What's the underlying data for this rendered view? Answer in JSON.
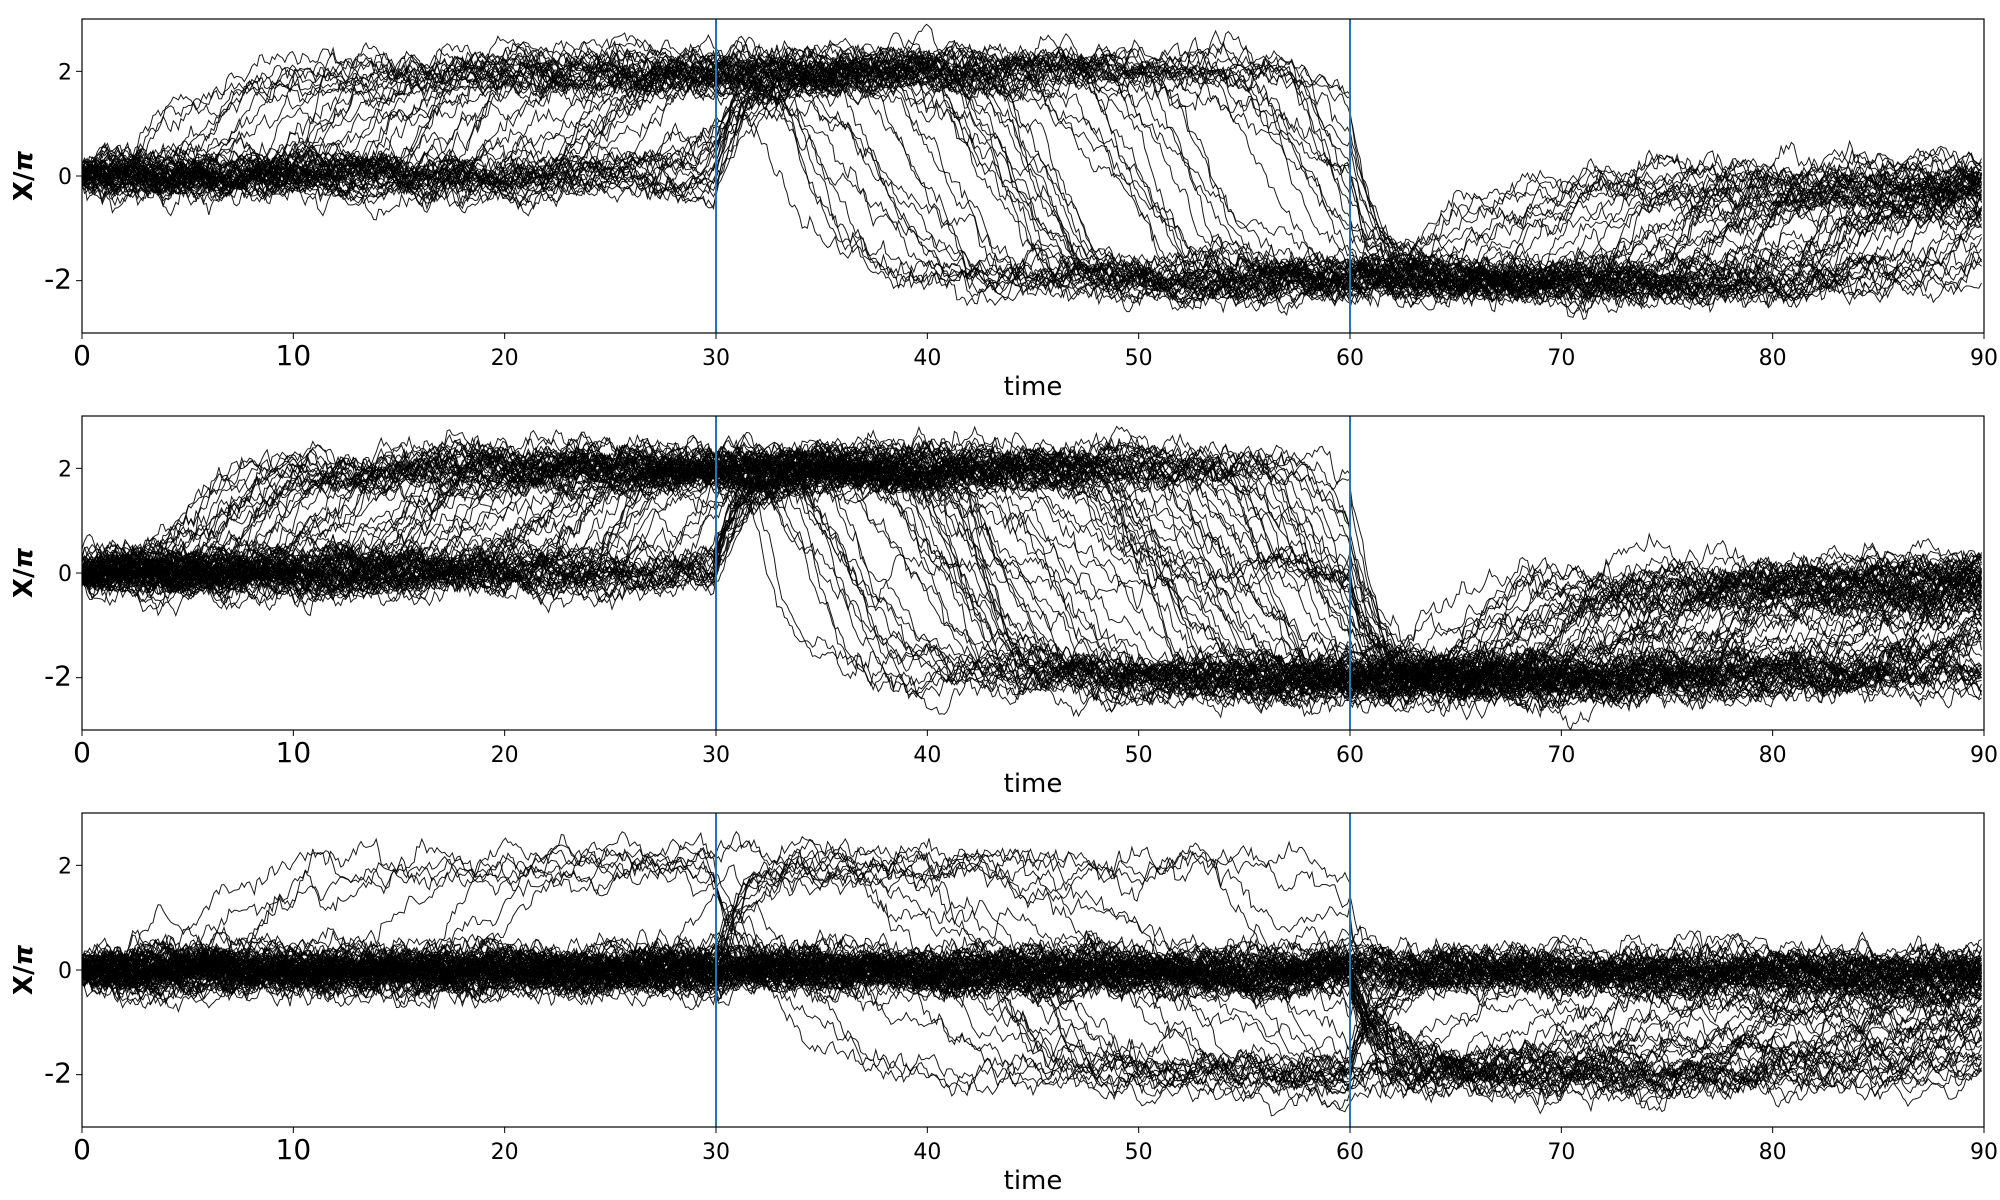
{
  "chart_data": [
    {
      "type": "line",
      "xlabel": "time",
      "ylabel": "X/",
      "ylabel_symbol": "π",
      "xlim": [
        0,
        90
      ],
      "ylim": [
        -3,
        3
      ],
      "xticks": [
        0,
        10,
        20,
        30,
        40,
        50,
        60,
        70,
        80,
        90
      ],
      "xtick_labels": [
        "0",
        "10",
        "20",
        "30",
        "40",
        "50",
        "60",
        "70",
        "80",
        "90"
      ],
      "yticks": [
        2,
        0,
        -2
      ],
      "ytick_labels": [
        "2",
        "0",
        "-2"
      ],
      "grid": false,
      "line_color": "#000000",
      "vlines": [
        30,
        60
      ],
      "vline_color": "#1f77b4",
      "phases": [
        {
          "t_start": 0,
          "t_end": 30,
          "start_levels": [
            0,
            0,
            0,
            0,
            0,
            0,
            0,
            0,
            0,
            0
          ],
          "end_levels": [
            2,
            2,
            2,
            2,
            2,
            2,
            0,
            0,
            2,
            2
          ]
        },
        {
          "t_start": 30,
          "t_end": 60,
          "start_levels": [
            2,
            2,
            2,
            2,
            2,
            2,
            2,
            2,
            2,
            2
          ],
          "end_levels": [
            -2,
            -2,
            -2,
            -2,
            -2,
            -2,
            -2,
            -2,
            -2,
            -2
          ]
        },
        {
          "t_start": 60,
          "t_end": 90,
          "start_levels": [
            -2,
            -2,
            -2,
            -2,
            -2,
            -2,
            -2,
            -2,
            -2,
            -2
          ],
          "end_levels": [
            0,
            -0.3,
            -0.5,
            0,
            -0.2,
            -0.6,
            0,
            -0.4,
            -0.1,
            -0.8
          ]
        }
      ],
      "series_count": 60
    },
    {
      "type": "line",
      "xlabel": "time",
      "ylabel": "X/",
      "ylabel_symbol": "π",
      "xlim": [
        0,
        90
      ],
      "ylim": [
        -3,
        3
      ],
      "xticks": [
        0,
        10,
        20,
        30,
        40,
        50,
        60,
        70,
        80,
        90
      ],
      "xtick_labels": [
        "0",
        "10",
        "20",
        "30",
        "40",
        "50",
        "60",
        "70",
        "80",
        "90"
      ],
      "yticks": [
        2,
        0,
        -2
      ],
      "ytick_labels": [
        "2",
        "0",
        "-2"
      ],
      "grid": false,
      "line_color": "#000000",
      "vlines": [
        30,
        60
      ],
      "vline_color": "#1f77b4",
      "phases": [
        {
          "t_start": 0,
          "t_end": 30,
          "start_levels": [
            0,
            0,
            0,
            0,
            0,
            0,
            0,
            0,
            0,
            0
          ],
          "end_levels": [
            2,
            2,
            2,
            2,
            2,
            0,
            2,
            0,
            2,
            2
          ]
        },
        {
          "t_start": 30,
          "t_end": 60,
          "start_levels": [
            2,
            2,
            2,
            2,
            2,
            2,
            2,
            2,
            2,
            2
          ],
          "end_levels": [
            -2,
            -2,
            -2,
            0,
            -2,
            -2,
            -2,
            -2,
            -2,
            -2
          ]
        },
        {
          "t_start": 60,
          "t_end": 90,
          "start_levels": [
            -2,
            -2,
            -2,
            -2,
            -2,
            -2,
            -2,
            -2,
            -2,
            -2
          ],
          "end_levels": [
            0,
            -0.3,
            -0.6,
            -2,
            -0.2,
            0,
            -0.5,
            -1.5,
            -0.1,
            -0.4
          ]
        }
      ],
      "series_count": 90
    },
    {
      "type": "line",
      "xlabel": "time",
      "ylabel": "X/",
      "ylabel_symbol": "π",
      "xlim": [
        0,
        90
      ],
      "ylim": [
        -3,
        3
      ],
      "xticks": [
        0,
        10,
        20,
        30,
        40,
        50,
        60,
        70,
        80,
        90
      ],
      "xtick_labels": [
        "0",
        "10",
        "20",
        "30",
        "40",
        "50",
        "60",
        "70",
        "80",
        "90"
      ],
      "yticks": [
        2,
        0,
        -2
      ],
      "ytick_labels": [
        "2",
        "0",
        "-2"
      ],
      "grid": false,
      "line_color": "#000000",
      "vlines": [
        30,
        60
      ],
      "vline_color": "#1f77b4",
      "phases": [
        {
          "t_start": 0,
          "t_end": 30,
          "start_levels": [
            0,
            0,
            0,
            0,
            0,
            0,
            0,
            0,
            0,
            0
          ],
          "end_levels": [
            0,
            0,
            2,
            0,
            0,
            2,
            0,
            0,
            0,
            0
          ]
        },
        {
          "t_start": 30,
          "t_end": 60,
          "start_levels": [
            0,
            2,
            0,
            0,
            0,
            0,
            0,
            2,
            0,
            0
          ],
          "end_levels": [
            0,
            0,
            -2,
            0,
            0,
            -2,
            0,
            0,
            0,
            -2
          ]
        },
        {
          "t_start": 60,
          "t_end": 90,
          "start_levels": [
            0,
            0,
            -2,
            0,
            0,
            -2,
            0,
            0,
            0,
            -2
          ],
          "end_levels": [
            0,
            0,
            -0.5,
            0,
            0,
            -1.5,
            0,
            -0.2,
            0,
            -1
          ]
        }
      ],
      "series_count": 90
    }
  ]
}
